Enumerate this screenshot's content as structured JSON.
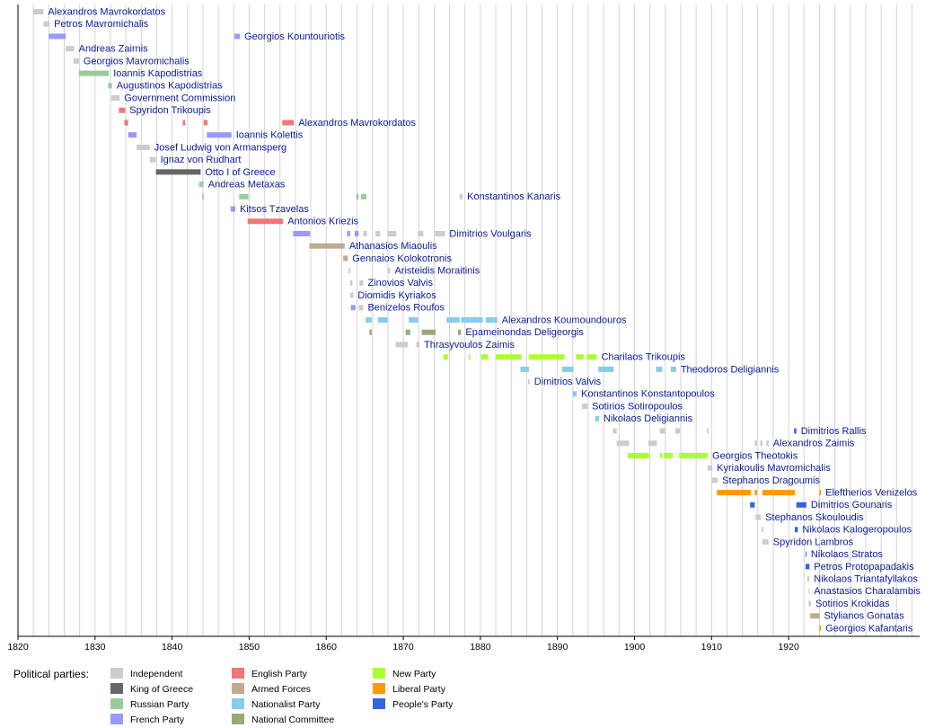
{
  "chart_data": {
    "type": "timeline",
    "xlim": [
      1820,
      1937
    ],
    "xticks": [
      1820,
      1830,
      1840,
      1850,
      1860,
      1870,
      1880,
      1890,
      1900,
      1910,
      1920
    ],
    "grid_years": [
      1822,
      1824,
      1826,
      1828,
      1832,
      1834,
      1836,
      1838,
      1842,
      1844,
      1846,
      1848,
      1852,
      1854,
      1856,
      1858,
      1862,
      1864,
      1866,
      1868,
      1872,
      1874,
      1876,
      1878,
      1882,
      1884,
      1886,
      1888,
      1892,
      1894,
      1896,
      1898,
      1902,
      1904,
      1906,
      1908,
      1912,
      1914,
      1916,
      1918,
      1922,
      1924,
      1926,
      1928,
      1930,
      1932,
      1934,
      1936
    ],
    "legend_title": "Political parties:",
    "parties": [
      {
        "name": "Independent",
        "color": "#cccccc"
      },
      {
        "name": "King of Greece",
        "color": "#666666"
      },
      {
        "name": "Russian Party",
        "color": "#99cc99"
      },
      {
        "name": "French Party",
        "color": "#9999ff"
      },
      {
        "name": "English Party",
        "color": "#ee7777"
      },
      {
        "name": "Armed Forces",
        "color": "#bfab8f"
      },
      {
        "name": "Nationalist Party",
        "color": "#88ccee"
      },
      {
        "name": "National Committee",
        "color": "#99aa77"
      },
      {
        "name": "New Party",
        "color": "#aaff33"
      },
      {
        "name": "Liberal Party",
        "color": "#ff9900"
      },
      {
        "name": "People's Party",
        "color": "#3366dd"
      }
    ],
    "rows": [
      {
        "name": "Alexandros Mavrokordatos",
        "terms": [
          {
            "start": 1822.0,
            "end": 1823.3,
            "party": 0
          }
        ]
      },
      {
        "name": "Petros Mavromichalis",
        "terms": [
          {
            "start": 1823.3,
            "end": 1824.1,
            "party": 0
          }
        ]
      },
      {
        "name": "Georgios Kountouriotis",
        "terms": [
          {
            "start": 1824.0,
            "end": 1826.2,
            "party": 3
          },
          {
            "start": 1848.1,
            "end": 1848.8,
            "party": 3
          }
        ]
      },
      {
        "name": "Andreas Zairnis",
        "terms": [
          {
            "start": 1826.2,
            "end": 1827.3,
            "party": 0
          }
        ]
      },
      {
        "name": "Georgios Mavromichalis",
        "terms": [
          {
            "start": 1827.2,
            "end": 1827.9,
            "party": 0
          }
        ]
      },
      {
        "name": "Ioannis Kapodistrias",
        "terms": [
          {
            "start": 1827.9,
            "end": 1831.8,
            "party": 2
          }
        ]
      },
      {
        "name": "Augustinos Kapodistrias",
        "terms": [
          {
            "start": 1831.7,
            "end": 1832.2,
            "party": 2
          }
        ]
      },
      {
        "name": "Government Commission",
        "terms": [
          {
            "start": 1832.1,
            "end": 1833.2,
            "party": 0
          }
        ]
      },
      {
        "name": "Spyridon Trikoupis",
        "terms": [
          {
            "start": 1833.1,
            "end": 1833.9,
            "party": 4
          }
        ]
      },
      {
        "name": "Alexandros Mavrokordatos",
        "terms": [
          {
            "start": 1833.8,
            "end": 1834.3,
            "party": 4
          },
          {
            "start": 1841.4,
            "end": 1841.7,
            "party": 4
          },
          {
            "start": 1844.1,
            "end": 1844.6,
            "party": 4
          },
          {
            "start": 1854.3,
            "end": 1855.8,
            "party": 4
          }
        ]
      },
      {
        "name": "Ioannis Kolettis",
        "terms": [
          {
            "start": 1834.3,
            "end": 1835.4,
            "party": 3
          },
          {
            "start": 1844.5,
            "end": 1847.7,
            "party": 3
          }
        ]
      },
      {
        "name": "Josef Ludwig von Armansperg",
        "terms": [
          {
            "start": 1835.4,
            "end": 1837.1,
            "party": 0
          }
        ]
      },
      {
        "name": "Ignaz von Rudhart",
        "terms": [
          {
            "start": 1837.1,
            "end": 1837.9,
            "party": 0
          }
        ]
      },
      {
        "name": "Otto I of Greece",
        "terms": [
          {
            "start": 1837.9,
            "end": 1843.7,
            "party": 1
          }
        ]
      },
      {
        "name": "Andreas Metaxas",
        "terms": [
          {
            "start": 1843.5,
            "end": 1844.1,
            "party": 2
          }
        ]
      },
      {
        "name": "Konstantinos Kanaris",
        "terms": [
          {
            "start": 1843.9,
            "end": 1844.1,
            "party": 2
          },
          {
            "start": 1848.7,
            "end": 1849.9,
            "party": 2
          },
          {
            "start": 1863.9,
            "end": 1864.2,
            "party": 2
          },
          {
            "start": 1864.5,
            "end": 1865.2,
            "party": 2
          },
          {
            "start": 1877.3,
            "end": 1877.7,
            "party": 0
          }
        ]
      },
      {
        "name": "Kitsos Tzavelas",
        "terms": [
          {
            "start": 1847.6,
            "end": 1848.2,
            "party": 3
          }
        ]
      },
      {
        "name": "Antonios Kriezis",
        "terms": [
          {
            "start": 1849.8,
            "end": 1854.4,
            "party": 4
          }
        ]
      },
      {
        "name": "Dimitrios Voulgaris",
        "terms": [
          {
            "start": 1855.7,
            "end": 1857.9,
            "party": 3
          },
          {
            "start": 1862.7,
            "end": 1863.1,
            "party": 3
          },
          {
            "start": 1863.7,
            "end": 1864.2,
            "party": 3
          },
          {
            "start": 1864.8,
            "end": 1865.3,
            "party": 0
          },
          {
            "start": 1866.4,
            "end": 1867.0,
            "party": 0
          },
          {
            "start": 1868.0,
            "end": 1869.1,
            "party": 0
          },
          {
            "start": 1871.9,
            "end": 1872.6,
            "party": 0
          },
          {
            "start": 1874.1,
            "end": 1875.4,
            "party": 0
          }
        ]
      },
      {
        "name": "Athanasios Miaoulis",
        "terms": [
          {
            "start": 1857.8,
            "end": 1862.4,
            "party": 5
          }
        ]
      },
      {
        "name": "Gennaios Kolokotronis",
        "terms": [
          {
            "start": 1862.2,
            "end": 1862.8,
            "party": 5
          }
        ]
      },
      {
        "name": "Aristeidis Moraitinis",
        "terms": [
          {
            "start": 1862.9,
            "end": 1863.1,
            "party": 0
          },
          {
            "start": 1868.0,
            "end": 1868.3,
            "party": 0
          }
        ]
      },
      {
        "name": "Zinovios Valvis",
        "terms": [
          {
            "start": 1863.1,
            "end": 1863.4,
            "party": 0
          },
          {
            "start": 1864.3,
            "end": 1864.8,
            "party": 0
          }
        ]
      },
      {
        "name": "Diomidis Kyriakos",
        "terms": [
          {
            "start": 1863.1,
            "end": 1863.5,
            "party": 0
          }
        ]
      },
      {
        "name": "Benizelos Roufos",
        "terms": [
          {
            "start": 1863.2,
            "end": 1863.8,
            "party": 3
          },
          {
            "start": 1864.2,
            "end": 1864.8,
            "party": 0
          }
        ]
      },
      {
        "name": "Alexandros Koumoundouros",
        "terms": [
          {
            "start": 1865.1,
            "end": 1865.9,
            "party": 6
          },
          {
            "start": 1866.7,
            "end": 1868.0,
            "party": 6
          },
          {
            "start": 1870.7,
            "end": 1871.9,
            "party": 6
          },
          {
            "start": 1875.6,
            "end": 1877.3,
            "party": 6
          },
          {
            "start": 1877.5,
            "end": 1880.3,
            "party": 6
          },
          {
            "start": 1880.7,
            "end": 1882.2,
            "party": 6
          }
        ]
      },
      {
        "name": "Epameinondas Deligeorgis",
        "terms": [
          {
            "start": 1865.6,
            "end": 1865.9,
            "party": 7
          },
          {
            "start": 1870.3,
            "end": 1870.9,
            "party": 7
          },
          {
            "start": 1872.4,
            "end": 1874.2,
            "party": 7
          },
          {
            "start": 1877.1,
            "end": 1877.5,
            "party": 7
          }
        ]
      },
      {
        "name": "Thrasyvoulos Zaimis",
        "terms": [
          {
            "start": 1869.0,
            "end": 1870.6,
            "party": 0
          },
          {
            "start": 1871.7,
            "end": 1872.1,
            "party": 0
          }
        ]
      },
      {
        "name": "Charilaos Trikoupis",
        "terms": [
          {
            "start": 1875.2,
            "end": 1875.8,
            "party": 8
          },
          {
            "start": 1878.5,
            "end": 1878.7,
            "party": 8
          },
          {
            "start": 1880.1,
            "end": 1881.0,
            "party": 8
          },
          {
            "start": 1882.0,
            "end": 1885.3,
            "party": 8
          },
          {
            "start": 1886.3,
            "end": 1890.9,
            "party": 8
          },
          {
            "start": 1892.4,
            "end": 1893.4,
            "party": 8
          },
          {
            "start": 1893.8,
            "end": 1895.1,
            "party": 8
          }
        ]
      },
      {
        "name": "Theodoros Deligiannis",
        "terms": [
          {
            "start": 1885.2,
            "end": 1886.3,
            "party": 6
          },
          {
            "start": 1890.6,
            "end": 1892.1,
            "party": 6
          },
          {
            "start": 1895.3,
            "end": 1897.3,
            "party": 6
          },
          {
            "start": 1902.8,
            "end": 1903.6,
            "party": 6
          },
          {
            "start": 1904.7,
            "end": 1905.4,
            "party": 6
          }
        ]
      },
      {
        "name": "Dimitrios Valvis",
        "terms": [
          {
            "start": 1886.2,
            "end": 1886.4,
            "party": 0
          }
        ]
      },
      {
        "name": "Konstantinos Konstantopoulos",
        "terms": [
          {
            "start": 1892.0,
            "end": 1892.5,
            "party": 6
          }
        ]
      },
      {
        "name": "Sotirios Sotiropoulos",
        "terms": [
          {
            "start": 1893.2,
            "end": 1893.9,
            "party": 0
          }
        ]
      },
      {
        "name": "Nikolaos Deligiannis",
        "terms": [
          {
            "start": 1894.9,
            "end": 1895.4,
            "party": 6
          }
        ]
      },
      {
        "name": "Dimitrios Rallis",
        "terms": [
          {
            "start": 1897.2,
            "end": 1897.7,
            "party": 0
          },
          {
            "start": 1903.3,
            "end": 1904.0,
            "party": 0
          },
          {
            "start": 1905.3,
            "end": 1905.9,
            "party": 0
          },
          {
            "start": 1909.4,
            "end": 1909.6,
            "party": 0
          },
          {
            "start": 1920.7,
            "end": 1921.0,
            "party": 10
          }
        ]
      },
      {
        "name": "Alexandros Zaimis",
        "terms": [
          {
            "start": 1897.7,
            "end": 1899.3,
            "party": 0
          },
          {
            "start": 1901.8,
            "end": 1902.9,
            "party": 0
          },
          {
            "start": 1915.6,
            "end": 1915.9,
            "party": 0
          },
          {
            "start": 1916.3,
            "end": 1916.6,
            "party": 0
          },
          {
            "start": 1917.1,
            "end": 1917.4,
            "party": 0
          }
        ]
      },
      {
        "name": "Georgios Theotokis",
        "terms": [
          {
            "start": 1899.1,
            "end": 1901.9,
            "party": 8
          },
          {
            "start": 1903.3,
            "end": 1903.6,
            "party": 8
          },
          {
            "start": 1903.8,
            "end": 1905.0,
            "party": 8
          },
          {
            "start": 1905.8,
            "end": 1909.5,
            "party": 8
          }
        ]
      },
      {
        "name": "Kyriakoulis Mavromichalis",
        "terms": [
          {
            "start": 1909.5,
            "end": 1910.1,
            "party": 0
          }
        ]
      },
      {
        "name": "Stephanos Dragoumis",
        "terms": [
          {
            "start": 1910.0,
            "end": 1910.8,
            "party": 0
          }
        ]
      },
      {
        "name": "Eleftherios Venizelos",
        "terms": [
          {
            "start": 1910.7,
            "end": 1915.1,
            "party": 9
          },
          {
            "start": 1915.6,
            "end": 1915.9,
            "party": 9
          },
          {
            "start": 1916.6,
            "end": 1920.8,
            "party": 9
          },
          {
            "start": 1924.0,
            "end": 1924.2,
            "party": 9
          }
        ]
      },
      {
        "name": "Dimitrios Gounaris",
        "terms": [
          {
            "start": 1915.0,
            "end": 1915.6,
            "party": 10
          },
          {
            "start": 1921.0,
            "end": 1922.3,
            "party": 10
          }
        ]
      },
      {
        "name": "Stephanos Skouloudis",
        "terms": [
          {
            "start": 1915.7,
            "end": 1916.4,
            "party": 0
          }
        ]
      },
      {
        "name": "Nikolaos Kalogeropoulos",
        "terms": [
          {
            "start": 1916.5,
            "end": 1916.7,
            "party": 0
          },
          {
            "start": 1920.8,
            "end": 1921.2,
            "party": 10
          }
        ]
      },
      {
        "name": "Spyridon Lambros",
        "terms": [
          {
            "start": 1916.6,
            "end": 1917.4,
            "party": 0
          }
        ]
      },
      {
        "name": "Nikolaos Stratos",
        "terms": [
          {
            "start": 1922.2,
            "end": 1922.3,
            "party": 10
          }
        ]
      },
      {
        "name": "Petros Protopapadakis",
        "terms": [
          {
            "start": 1922.2,
            "end": 1922.7,
            "party": 10
          }
        ]
      },
      {
        "name": "Nikolaos Triantafyllakos",
        "terms": [
          {
            "start": 1922.4,
            "end": 1922.7,
            "party": 0
          }
        ]
      },
      {
        "name": "Anastasios Charalambis",
        "terms": [
          {
            "start": 1922.6,
            "end": 1922.7,
            "party": 0
          }
        ]
      },
      {
        "name": "Sotirios Krokidas",
        "terms": [
          {
            "start": 1922.6,
            "end": 1922.9,
            "party": 0
          }
        ]
      },
      {
        "name": "Stylianos Gonatas",
        "terms": [
          {
            "start": 1922.8,
            "end": 1924.0,
            "party": 5
          }
        ]
      },
      {
        "name": "Georgios Kafantaris",
        "terms": [
          {
            "start": 1924.0,
            "end": 1924.2,
            "party": 9
          }
        ]
      }
    ]
  }
}
